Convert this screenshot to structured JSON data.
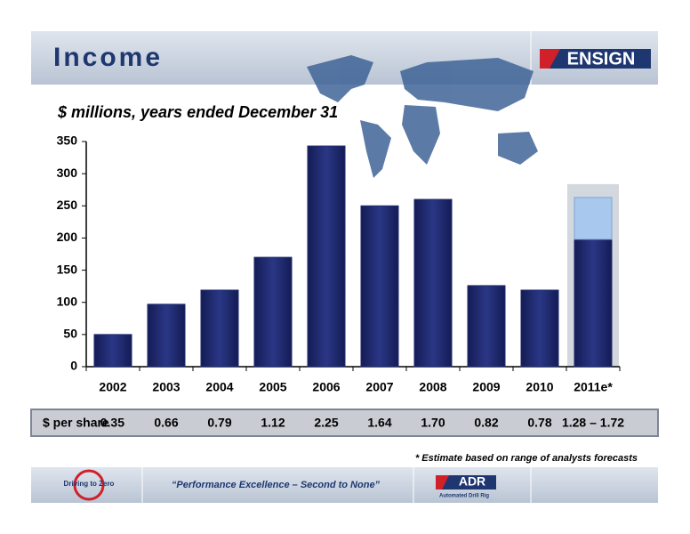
{
  "header": {
    "title": "Income",
    "logo": "ENSIGN"
  },
  "chart_data": {
    "type": "bar",
    "subtitle": "$ millions, years ended December 31",
    "categories": [
      "2002",
      "2003",
      "2004",
      "2005",
      "2006",
      "2007",
      "2008",
      "2009",
      "2010",
      "2011e*"
    ],
    "values": [
      50,
      97,
      119,
      170,
      343,
      250,
      260,
      126,
      119,
      198
    ],
    "range_high": [
      null,
      null,
      null,
      null,
      null,
      null,
      null,
      null,
      null,
      263
    ],
    "color": "#1e2a6e",
    "range_color": "#a9c8ee",
    "ylim": [
      0,
      350
    ],
    "yticks": [
      0,
      50,
      100,
      150,
      200,
      250,
      300,
      350
    ],
    "footnote": "* Estimate based on range of analysts forecasts"
  },
  "per_share": {
    "label": "$ per share",
    "values": [
      "0.35",
      "0.66",
      "0.79",
      "1.12",
      "2.25",
      "1.64",
      "1.70",
      "0.82",
      "0.78",
      "1.28 – 1.72"
    ]
  },
  "footer": {
    "left_logo": "Driving to Zero",
    "quote": "“Performance Excellence – Second to None”",
    "right_logo": "ADR",
    "right_logo_sub": "Automated Drill Rig"
  }
}
